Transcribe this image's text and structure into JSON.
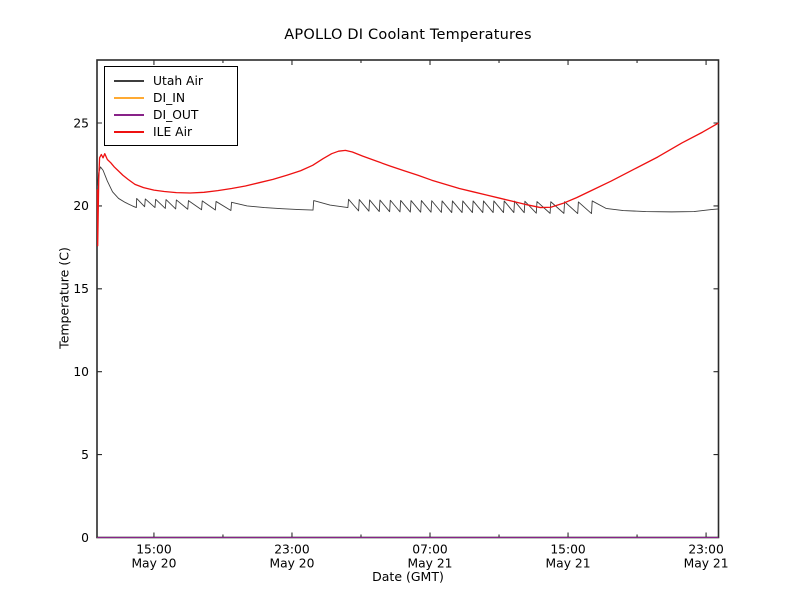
{
  "window": {
    "background": "#ffffff"
  },
  "chart_data": {
    "type": "line",
    "title": "APOLLO DI Coolant Temperatures",
    "xlabel": "Date (GMT)",
    "ylabel": "Temperature (C)",
    "x_unit_hours_since": "May 20 00:00 GMT",
    "xlim": [
      11.7,
      47.72
    ],
    "ylim": [
      0,
      28.8
    ],
    "grid": false,
    "legend_position": "upper left",
    "axis_color": "#2b2b2b",
    "x_major_ticks": [
      {
        "h": 15,
        "time": "15:00",
        "date": "May 20"
      },
      {
        "h": 23,
        "time": "23:00",
        "date": "May 20"
      },
      {
        "h": 31,
        "time": "07:00",
        "date": "May 21"
      },
      {
        "h": 39,
        "time": "15:00",
        "date": "May 21"
      },
      {
        "h": 47,
        "time": "23:00",
        "date": "May 21"
      }
    ],
    "x_minor_ticks": [
      19,
      27,
      35,
      43
    ],
    "y_ticks": [
      0,
      5,
      10,
      15,
      20,
      25
    ],
    "note": "DI_IN and DI_OUT read 0 for the whole span and lie hidden along the x-axis baseline (maroon tint on bottom spine). Utah Air is a sawtooth around 19.6-20.4 C. ILE Air has a startup transient, a broad peak ~23.4 C near 01:00 May 21, a minimum ~19.9 C near 12:30 May 21, then rises to 25.0 C.",
    "series": [
      {
        "name": "Utah Air",
        "color": "#3d3d3d",
        "width": 0.9,
        "points": [
          [
            11.72,
            21.2
          ],
          [
            11.8,
            22.0
          ],
          [
            11.9,
            22.35
          ],
          [
            12.05,
            22.15
          ],
          [
            12.3,
            21.5
          ],
          [
            12.6,
            20.85
          ],
          [
            12.95,
            20.45
          ],
          [
            13.35,
            20.2
          ],
          [
            13.75,
            20.0
          ],
          [
            13.98,
            19.9
          ],
          [
            14.0,
            20.45
          ],
          [
            14.46,
            19.95
          ],
          [
            14.5,
            20.42
          ],
          [
            15.06,
            19.9
          ],
          [
            15.1,
            20.4
          ],
          [
            15.66,
            19.85
          ],
          [
            15.7,
            20.38
          ],
          [
            16.26,
            19.82
          ],
          [
            16.3,
            20.36
          ],
          [
            16.96,
            19.8
          ],
          [
            17.0,
            20.32
          ],
          [
            17.76,
            19.77
          ],
          [
            17.8,
            20.3
          ],
          [
            18.56,
            19.75
          ],
          [
            18.6,
            20.27
          ],
          [
            19.46,
            19.72
          ],
          [
            19.5,
            20.22
          ],
          [
            20.4,
            20.0
          ],
          [
            21.4,
            19.9
          ],
          [
            22.4,
            19.83
          ],
          [
            23.4,
            19.78
          ],
          [
            24.22,
            19.75
          ],
          [
            24.26,
            20.32
          ],
          [
            25.2,
            20.05
          ],
          [
            26.24,
            19.9
          ],
          [
            26.28,
            20.4
          ],
          [
            26.86,
            19.7
          ],
          [
            26.9,
            20.38
          ],
          [
            27.46,
            19.68
          ],
          [
            27.5,
            20.36
          ],
          [
            28.06,
            19.66
          ],
          [
            28.1,
            20.35
          ],
          [
            28.66,
            19.65
          ],
          [
            28.7,
            20.34
          ],
          [
            29.26,
            19.64
          ],
          [
            29.3,
            20.33
          ],
          [
            29.86,
            19.63
          ],
          [
            29.9,
            20.32
          ],
          [
            30.46,
            19.62
          ],
          [
            30.5,
            20.32
          ],
          [
            31.06,
            19.62
          ],
          [
            31.1,
            20.31
          ],
          [
            31.66,
            19.61
          ],
          [
            31.7,
            20.3
          ],
          [
            32.26,
            19.6
          ],
          [
            32.3,
            20.3
          ],
          [
            32.86,
            19.6
          ],
          [
            32.9,
            20.3
          ],
          [
            33.46,
            19.6
          ],
          [
            33.5,
            20.3
          ],
          [
            34.06,
            19.6
          ],
          [
            34.1,
            20.3
          ],
          [
            34.66,
            19.6
          ],
          [
            34.7,
            20.3
          ],
          [
            35.26,
            19.6
          ],
          [
            35.3,
            20.3
          ],
          [
            35.86,
            19.6
          ],
          [
            35.9,
            20.29
          ],
          [
            36.46,
            19.59
          ],
          [
            36.5,
            20.28
          ],
          [
            37.16,
            19.56
          ],
          [
            37.2,
            20.26
          ],
          [
            37.96,
            19.55
          ],
          [
            38.0,
            20.25
          ],
          [
            38.76,
            19.55
          ],
          [
            38.8,
            20.25
          ],
          [
            39.56,
            19.54
          ],
          [
            39.6,
            20.24
          ],
          [
            40.36,
            19.54
          ],
          [
            40.4,
            20.3
          ],
          [
            41.2,
            19.85
          ],
          [
            42.2,
            19.72
          ],
          [
            43.5,
            19.66
          ],
          [
            45.0,
            19.64
          ],
          [
            46.3,
            19.66
          ],
          [
            47.3,
            19.78
          ],
          [
            47.72,
            19.82
          ]
        ]
      },
      {
        "name": "DI_IN",
        "color": "#ffaa33",
        "width": 1,
        "points": [
          [
            11.72,
            0
          ],
          [
            47.72,
            0
          ]
        ]
      },
      {
        "name": "DI_OUT",
        "color": "#882288",
        "width": 1,
        "points": [
          [
            11.72,
            0
          ],
          [
            47.72,
            0
          ]
        ]
      },
      {
        "name": "ILE Air",
        "color": "#ee1111",
        "width": 1.3,
        "points": [
          [
            11.72,
            21.0
          ],
          [
            11.74,
            17.6
          ],
          [
            11.8,
            21.6
          ],
          [
            11.85,
            22.9
          ],
          [
            11.95,
            23.1
          ],
          [
            12.05,
            22.9
          ],
          [
            12.15,
            23.15
          ],
          [
            12.3,
            22.8
          ],
          [
            12.5,
            22.6
          ],
          [
            12.7,
            22.35
          ],
          [
            12.9,
            22.15
          ],
          [
            13.2,
            21.85
          ],
          [
            13.5,
            21.6
          ],
          [
            13.9,
            21.3
          ],
          [
            14.4,
            21.1
          ],
          [
            15.0,
            20.95
          ],
          [
            15.6,
            20.87
          ],
          [
            16.3,
            20.8
          ],
          [
            17.1,
            20.78
          ],
          [
            17.9,
            20.82
          ],
          [
            18.7,
            20.92
          ],
          [
            19.5,
            21.05
          ],
          [
            20.3,
            21.2
          ],
          [
            21.1,
            21.4
          ],
          [
            21.9,
            21.6
          ],
          [
            22.7,
            21.85
          ],
          [
            23.5,
            22.12
          ],
          [
            24.2,
            22.45
          ],
          [
            24.8,
            22.85
          ],
          [
            25.3,
            23.15
          ],
          [
            25.7,
            23.3
          ],
          [
            26.1,
            23.35
          ],
          [
            26.5,
            23.25
          ],
          [
            27.1,
            23.0
          ],
          [
            27.9,
            22.7
          ],
          [
            28.7,
            22.4
          ],
          [
            29.5,
            22.12
          ],
          [
            30.3,
            21.85
          ],
          [
            31.1,
            21.55
          ],
          [
            31.9,
            21.3
          ],
          [
            32.7,
            21.05
          ],
          [
            33.5,
            20.85
          ],
          [
            34.3,
            20.65
          ],
          [
            35.1,
            20.45
          ],
          [
            35.9,
            20.25
          ],
          [
            36.7,
            20.05
          ],
          [
            37.4,
            19.9
          ],
          [
            38.0,
            19.92
          ],
          [
            38.7,
            20.15
          ],
          [
            39.5,
            20.5
          ],
          [
            40.3,
            20.9
          ],
          [
            41.5,
            21.5
          ],
          [
            42.8,
            22.2
          ],
          [
            44.2,
            22.95
          ],
          [
            45.6,
            23.8
          ],
          [
            46.8,
            24.45
          ],
          [
            47.72,
            25.0
          ]
        ]
      }
    ]
  }
}
